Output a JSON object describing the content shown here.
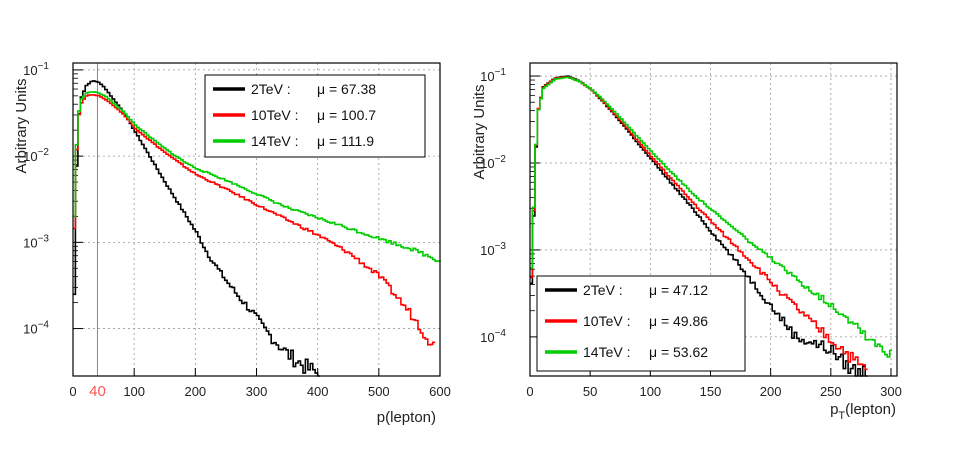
{
  "chart_data": [
    {
      "type": "line",
      "title": "",
      "xlabel": "p(lepton)",
      "ylabel": "Arbitrary Units",
      "xlim": [
        0,
        600
      ],
      "ylim_log10": [
        -4.55,
        -0.92
      ],
      "x_ticks": [
        0,
        100,
        200,
        300,
        400,
        500,
        600
      ],
      "y_ticks": [
        {
          "exp": -4,
          "label": "10",
          "sup": "−4"
        },
        {
          "exp": -3,
          "label": "10",
          "sup": "−3"
        },
        {
          "exp": -2,
          "label": "10",
          "sup": "−2"
        },
        {
          "exp": -1,
          "label": "10",
          "sup": "−1"
        }
      ],
      "y_ticks_display": [
        "10^-4",
        "10^-3",
        "10^-2",
        "10^-1"
      ],
      "cut_line": {
        "x": 40,
        "label": "40",
        "color": "#ff5555"
      },
      "grid": true,
      "legend_position": "top-right",
      "series": [
        {
          "name": "2TeV",
          "legend_label": "2TeV :",
          "mean_label": "μ = 67.38",
          "color": "#000000",
          "x": [
            0,
            5,
            10,
            20,
            30,
            40,
            50,
            60,
            80,
            100,
            120,
            150,
            180,
            200,
            220,
            250,
            270,
            290,
            310,
            330,
            350,
            380,
            400
          ],
          "y": [
            0.00025,
            0.018,
            0.045,
            0.066,
            0.075,
            0.072,
            0.062,
            0.05,
            0.033,
            0.019,
            0.011,
            0.0048,
            0.0022,
            0.0013,
            0.0007,
            0.00035,
            0.00023,
            0.00016,
            0.0001,
            7e-05,
            5e-05,
            3.5e-05,
            3e-05
          ]
        },
        {
          "name": "10TeV",
          "legend_label": "10TeV :",
          "mean_label": "μ = 100.7",
          "color": "#ff0000",
          "x": [
            0,
            5,
            10,
            20,
            30,
            40,
            50,
            60,
            80,
            100,
            120,
            150,
            180,
            200,
            250,
            300,
            350,
            400,
            450,
            500,
            550,
            590
          ],
          "y": [
            0.0015,
            0.02,
            0.04,
            0.05,
            0.052,
            0.05,
            0.046,
            0.041,
            0.031,
            0.021,
            0.016,
            0.0108,
            0.0076,
            0.0061,
            0.0041,
            0.0027,
            0.0018,
            0.0012,
            0.00075,
            0.0004,
            0.00015,
            6e-05
          ]
        },
        {
          "name": "14TeV",
          "legend_label": "14TeV :",
          "mean_label": "μ = 111.9",
          "color": "#00cc00",
          "x": [
            0,
            5,
            10,
            20,
            30,
            40,
            50,
            60,
            80,
            100,
            120,
            150,
            180,
            200,
            250,
            300,
            350,
            400,
            450,
            500,
            550,
            600
          ],
          "y": [
            0.002,
            0.022,
            0.044,
            0.054,
            0.056,
            0.054,
            0.05,
            0.044,
            0.033,
            0.023,
            0.0175,
            0.012,
            0.0086,
            0.0072,
            0.0052,
            0.0036,
            0.0025,
            0.0019,
            0.00145,
            0.0011,
            0.00085,
            0.0006
          ]
        }
      ]
    },
    {
      "type": "line",
      "title": "",
      "xlabel": "p_T(lepton)",
      "xlabel_main": "p",
      "xlabel_sub": "T",
      "xlabel_rest": "(lepton)",
      "ylabel": "Arbitrary Units",
      "xlim": [
        0,
        305
      ],
      "ylim_log10": [
        -4.45,
        -0.85
      ],
      "x_ticks": [
        0,
        50,
        100,
        150,
        200,
        250,
        300
      ],
      "y_ticks": [
        {
          "exp": -4,
          "label": "10",
          "sup": "−4"
        },
        {
          "exp": -3,
          "label": "10",
          "sup": "−3"
        },
        {
          "exp": -2,
          "label": "10",
          "sup": "−2"
        },
        {
          "exp": -1,
          "label": "10",
          "sup": "−1"
        }
      ],
      "y_ticks_display": [
        "10^-4",
        "10^-3",
        "10^-2",
        "10^-1"
      ],
      "grid": true,
      "legend_position": "bottom-left",
      "series": [
        {
          "name": "2TeV",
          "legend_label": "2TeV :",
          "mean_label": "μ = 47.12",
          "color": "#000000",
          "x": [
            0,
            5,
            10,
            20,
            30,
            40,
            50,
            60,
            70,
            80,
            90,
            100,
            110,
            120,
            130,
            140,
            150,
            160,
            170,
            180,
            190,
            200,
            210,
            220,
            230,
            240,
            250,
            260,
            270,
            280
          ],
          "y": [
            0.0004,
            0.035,
            0.075,
            0.095,
            0.1,
            0.088,
            0.07,
            0.05,
            0.035,
            0.024,
            0.016,
            0.011,
            0.0075,
            0.0051,
            0.0035,
            0.0024,
            0.0016,
            0.0011,
            0.00075,
            0.0005,
            0.00033,
            0.00022,
            0.00015,
            0.0001,
            9e-05,
            8e-05,
            7e-05,
            5e-05,
            4e-05,
            4e-05
          ]
        },
        {
          "name": "10TeV",
          "legend_label": "10TeV :",
          "mean_label": "μ = 49.86",
          "color": "#ff0000",
          "x": [
            0,
            5,
            10,
            20,
            30,
            40,
            50,
            60,
            70,
            80,
            90,
            100,
            110,
            120,
            130,
            140,
            150,
            160,
            170,
            180,
            190,
            200,
            210,
            220,
            230,
            240,
            250,
            260,
            270,
            280
          ],
          "y": [
            0.0005,
            0.036,
            0.074,
            0.094,
            0.098,
            0.087,
            0.07,
            0.051,
            0.036,
            0.025,
            0.017,
            0.0118,
            0.0083,
            0.0058,
            0.0041,
            0.0029,
            0.0021,
            0.0015,
            0.0011,
            0.0008,
            0.00058,
            0.00042,
            0.0003,
            0.00022,
            0.00016,
            0.00012,
            9e-05,
            7e-05,
            5e-05,
            4e-05
          ]
        },
        {
          "name": "14TeV",
          "legend_label": "14TeV :",
          "mean_label": "μ = 53.62",
          "color": "#00cc00",
          "x": [
            0,
            5,
            10,
            20,
            30,
            40,
            50,
            60,
            70,
            80,
            90,
            100,
            110,
            120,
            130,
            140,
            150,
            160,
            170,
            180,
            190,
            200,
            210,
            220,
            230,
            240,
            250,
            260,
            270,
            280,
            290,
            300
          ],
          "y": [
            0.0006,
            0.035,
            0.072,
            0.092,
            0.097,
            0.087,
            0.071,
            0.053,
            0.038,
            0.027,
            0.019,
            0.0135,
            0.0097,
            0.007,
            0.0051,
            0.0038,
            0.0029,
            0.0022,
            0.0017,
            0.0013,
            0.001,
            0.00078,
            0.0006,
            0.00047,
            0.00037,
            0.00029,
            0.00023,
            0.00018,
            0.00014,
            0.0001,
            8e-05,
            6e-05
          ]
        }
      ]
    }
  ]
}
